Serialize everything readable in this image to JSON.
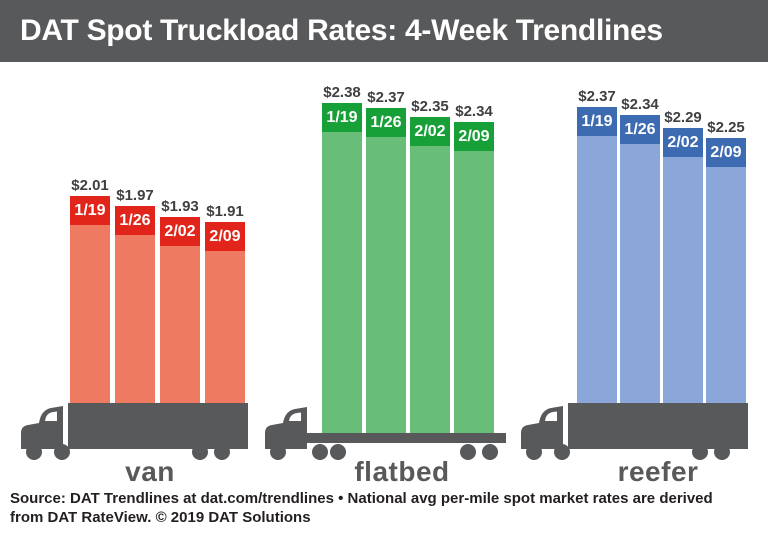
{
  "title": "DAT Spot Truckload Rates: 4-Week Trendlines",
  "footer": "Source: DAT Trendlines at dat.com/trendlines • National avg per-mile spot market rates are derived\nfrom DAT RateView. © 2019 DAT Solutions",
  "colors": {
    "title_bar": "#58595b",
    "title_text": "#ffffff",
    "truck": "#58595b",
    "value_text": "#3f4042",
    "date_text": "#ffffff",
    "category_text": "#58595b",
    "footer_text": "#231f20",
    "background": "#ffffff"
  },
  "chart_data": {
    "type": "bar",
    "title": "DAT Spot Truckload Rates: 4-Week Trendlines",
    "subtitle": "National avg per-mile spot market rates",
    "categories": [
      "1/19",
      "1/26",
      "2/02",
      "2/09"
    ],
    "unit": "USD per mile",
    "value_range": [
      1.91,
      2.38
    ],
    "legend_position": "none",
    "grid": false,
    "series": [
      {
        "name": "van",
        "values": [
          2.01,
          1.97,
          1.93,
          1.91
        ],
        "value_labels": [
          "$2.01",
          "$1.97",
          "$1.93",
          "$1.91"
        ],
        "cap_color": "#e1251b",
        "body_color": "#ee7a62",
        "truck_style": "box"
      },
      {
        "name": "flatbed",
        "values": [
          2.38,
          2.37,
          2.35,
          2.34
        ],
        "value_labels": [
          "$2.38",
          "$2.37",
          "$2.35",
          "$2.34"
        ],
        "cap_color": "#17a038",
        "body_color": "#68bd78",
        "truck_style": "flat"
      },
      {
        "name": "reefer",
        "values": [
          2.37,
          2.34,
          2.29,
          2.25
        ],
        "value_labels": [
          "$2.37",
          "$2.34",
          "$2.29",
          "$2.25"
        ],
        "cap_color": "#3d6bb1",
        "body_color": "#8ba6d8",
        "truck_style": "box"
      }
    ]
  }
}
